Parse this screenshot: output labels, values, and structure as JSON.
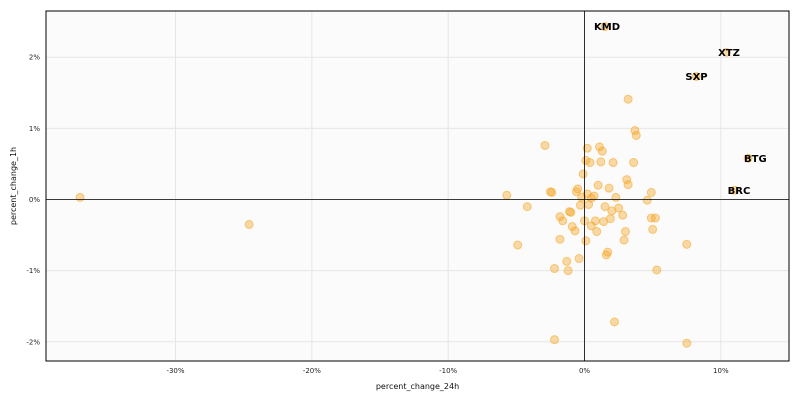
{
  "chart_data": {
    "type": "scatter",
    "title": "",
    "xlabel": "percent_change_24h",
    "ylabel": "percent_change_1h",
    "xlim": [
      -39.5,
      15.0
    ],
    "ylim": [
      -2.27,
      2.65
    ],
    "xticks": [
      {
        "value": -30,
        "label": "-30%"
      },
      {
        "value": -20,
        "label": "-20%"
      },
      {
        "value": -10,
        "label": "-10%"
      },
      {
        "value": 0,
        "label": "0%"
      },
      {
        "value": 10,
        "label": "10%"
      }
    ],
    "yticks": [
      {
        "value": -2,
        "label": "-2%"
      },
      {
        "value": -1,
        "label": "-1%"
      },
      {
        "value": 0,
        "label": "0%"
      },
      {
        "value": 1,
        "label": "1%"
      },
      {
        "value": 2,
        "label": "2%"
      }
    ],
    "grid": true,
    "reference_lines": {
      "x": 0,
      "y": 0
    },
    "colors": {
      "point": "#f5a623",
      "background": "#fbfbfb",
      "grid": "#e6e6e6"
    },
    "points": [
      {
        "x": -37.0,
        "y": 0.03
      },
      {
        "x": -24.6,
        "y": -0.35
      },
      {
        "x": -5.7,
        "y": 0.06
      },
      {
        "x": -4.9,
        "y": -0.64
      },
      {
        "x": -4.2,
        "y": -0.1
      },
      {
        "x": -2.9,
        "y": 0.76
      },
      {
        "x": -2.5,
        "y": 0.11
      },
      {
        "x": -2.4,
        "y": 0.1
      },
      {
        "x": -2.2,
        "y": -0.97
      },
      {
        "x": -2.2,
        "y": -1.97
      },
      {
        "x": -1.8,
        "y": -0.24
      },
      {
        "x": -1.8,
        "y": -0.56
      },
      {
        "x": -1.6,
        "y": -0.3
      },
      {
        "x": -1.3,
        "y": -0.87
      },
      {
        "x": -1.2,
        "y": -1.0
      },
      {
        "x": -1.1,
        "y": -0.17
      },
      {
        "x": -1.0,
        "y": -0.18
      },
      {
        "x": -0.9,
        "y": -0.38
      },
      {
        "x": -0.7,
        "y": -0.44
      },
      {
        "x": -0.6,
        "y": 0.11
      },
      {
        "x": -0.5,
        "y": 0.15
      },
      {
        "x": -0.4,
        "y": -0.83
      },
      {
        "x": -0.3,
        "y": -0.08
      },
      {
        "x": -0.2,
        "y": 0.03
      },
      {
        "x": -0.1,
        "y": 0.36
      },
      {
        "x": 0.0,
        "y": -0.3
      },
      {
        "x": 0.1,
        "y": 0.55
      },
      {
        "x": 0.1,
        "y": -0.58
      },
      {
        "x": 0.2,
        "y": 0.72
      },
      {
        "x": 0.2,
        "y": 0.08
      },
      {
        "x": 0.3,
        "y": -0.07
      },
      {
        "x": 0.4,
        "y": 0.52
      },
      {
        "x": 0.5,
        "y": -0.37
      },
      {
        "x": 0.5,
        "y": 0.02
      },
      {
        "x": 0.7,
        "y": 0.05
      },
      {
        "x": 0.8,
        "y": -0.3
      },
      {
        "x": 0.9,
        "y": -0.45
      },
      {
        "x": 1.0,
        "y": 0.2
      },
      {
        "x": 1.1,
        "y": 0.74
      },
      {
        "x": 1.2,
        "y": 0.53
      },
      {
        "x": 1.3,
        "y": 0.68
      },
      {
        "x": 1.4,
        "y": -0.31
      },
      {
        "x": 1.5,
        "y": -0.1
      },
      {
        "x": 1.6,
        "y": -0.78
      },
      {
        "x": 1.7,
        "y": -0.74
      },
      {
        "x": 1.8,
        "y": 0.16
      },
      {
        "x": 1.9,
        "y": -0.27
      },
      {
        "x": 2.0,
        "y": -0.16
      },
      {
        "x": 2.1,
        "y": 0.52
      },
      {
        "x": 2.2,
        "y": -1.72
      },
      {
        "x": 2.3,
        "y": 0.03
      },
      {
        "x": 2.5,
        "y": -0.12
      },
      {
        "x": 2.8,
        "y": -0.22
      },
      {
        "x": 2.9,
        "y": -0.57
      },
      {
        "x": 3.0,
        "y": -0.45
      },
      {
        "x": 3.1,
        "y": 0.28
      },
      {
        "x": 3.2,
        "y": 1.41
      },
      {
        "x": 3.2,
        "y": 0.21
      },
      {
        "x": 3.6,
        "y": 0.52
      },
      {
        "x": 3.7,
        "y": 0.97
      },
      {
        "x": 3.8,
        "y": 0.9
      },
      {
        "x": 4.6,
        "y": -0.01
      },
      {
        "x": 4.9,
        "y": 0.1
      },
      {
        "x": 4.9,
        "y": -0.26
      },
      {
        "x": 5.0,
        "y": -0.42
      },
      {
        "x": 5.2,
        "y": -0.26
      },
      {
        "x": 5.3,
        "y": -0.99
      },
      {
        "x": 7.5,
        "y": -0.63
      },
      {
        "x": 7.5,
        "y": -2.02
      },
      {
        "x": 8.2,
        "y": 1.73
      },
      {
        "x": 10.4,
        "y": 2.07
      },
      {
        "x": 11.0,
        "y": 0.13
      },
      {
        "x": 12.0,
        "y": 0.58
      },
      {
        "x": 1.5,
        "y": 2.43
      }
    ],
    "annotations": [
      {
        "label": "KMD",
        "x": 0.7,
        "y": 2.43
      },
      {
        "label": "XTZ",
        "x": 9.8,
        "y": 2.07
      },
      {
        "label": "SXP",
        "x": 7.4,
        "y": 1.73
      },
      {
        "label": "BTG",
        "x": 11.7,
        "y": 0.58
      },
      {
        "label": "BRC",
        "x": 10.5,
        "y": 0.13
      }
    ]
  }
}
